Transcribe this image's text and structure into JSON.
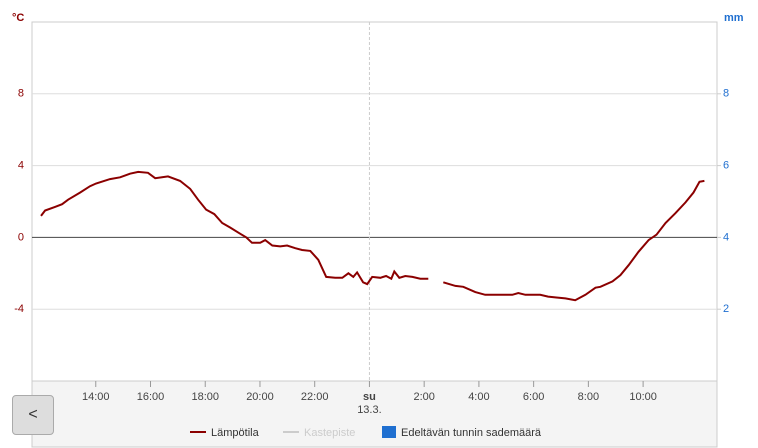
{
  "chart_data": {
    "type": "line",
    "y_label": "°C",
    "y2_label": "mm",
    "date_label": "13.3.",
    "x": [
      12.0,
      12.15,
      12.51,
      12.77,
      12.99,
      13.43,
      13.79,
      14.01,
      14.52,
      14.89,
      15.25,
      15.55,
      15.91,
      16.17,
      16.42,
      16.64,
      17.08,
      17.45,
      17.74,
      18.03,
      18.33,
      18.62,
      18.91,
      19.28,
      19.5,
      19.71,
      20.01,
      20.19,
      20.45,
      20.74,
      20.99,
      21.29,
      21.54,
      21.84,
      22.13,
      22.42,
      22.75,
      23.01,
      23.23,
      23.41,
      23.55,
      23.77,
      23.92,
      24.1,
      24.4,
      24.61,
      24.8,
      24.91,
      25.09,
      25.31,
      25.57,
      25.86,
      26.15,
      26.5,
      26.7,
      27.14,
      27.43,
      27.87,
      28.23,
      28.78,
      29.22,
      29.44,
      29.7,
      30.24,
      30.53,
      30.83,
      31.16,
      31.52,
      31.89,
      32.26,
      32.44,
      32.88,
      33.17,
      33.47,
      33.83,
      34.2,
      34.49,
      34.82,
      35.18,
      35.55,
      35.84,
      36.06,
      36.24
    ],
    "series": [
      {
        "name": "Lämpötila",
        "color": "#8b0000",
        "values": [
          1.2,
          1.5,
          1.7,
          1.85,
          2.1,
          2.5,
          2.85,
          3.0,
          3.25,
          3.35,
          3.55,
          3.65,
          3.6,
          3.3,
          3.35,
          3.4,
          3.15,
          2.7,
          2.1,
          1.55,
          1.3,
          0.8,
          0.55,
          0.2,
          0,
          -0.3,
          -0.3,
          -0.15,
          -0.45,
          -0.5,
          -0.45,
          -0.6,
          -0.7,
          -0.75,
          -1.25,
          -2.2,
          -2.25,
          -2.25,
          -2.0,
          -2.2,
          -1.95,
          -2.5,
          -2.6,
          -2.2,
          -2.25,
          -2.15,
          -2.3,
          -1.9,
          -2.25,
          -2.15,
          -2.2,
          -2.3,
          -2.3,
          null,
          -2.5,
          -2.7,
          -2.75,
          -3.05,
          -3.2,
          -3.2,
          -3.2,
          -3.1,
          -3.2,
          -3.2,
          -3.3,
          -3.35,
          -3.4,
          -3.5,
          -3.2,
          -2.8,
          -2.75,
          -2.45,
          -2.1,
          -1.55,
          -0.8,
          -0.15,
          0.15,
          0.8,
          1.35,
          1.95,
          2.5,
          3.1,
          3.15
        ]
      }
    ],
    "legend_items": [
      {
        "name": "Lämpötila",
        "color": "#8b0000",
        "kind": "line",
        "enabled": true
      },
      {
        "name": "Kastepiste",
        "color": "#cccccc",
        "kind": "line",
        "enabled": false
      },
      {
        "name": "Edeltävän tunnin sademäärä",
        "color": "#1f6fd0",
        "kind": "box",
        "enabled": true
      }
    ],
    "xlim": [
      11.67,
      36.7
    ],
    "xticks": [
      {
        "value": 14,
        "label": "14:00"
      },
      {
        "value": 16,
        "label": "16:00"
      },
      {
        "value": 18,
        "label": "18:00"
      },
      {
        "value": 20,
        "label": "20:00"
      },
      {
        "value": 22,
        "label": "22:00"
      },
      {
        "value": 24,
        "label": "su"
      },
      {
        "value": 26,
        "label": "2:00"
      },
      {
        "value": 28,
        "label": "4:00"
      },
      {
        "value": 30,
        "label": "6:00"
      },
      {
        "value": 32,
        "label": "8:00"
      },
      {
        "value": 34,
        "label": "10:00"
      }
    ],
    "ylim": [
      -8,
      12
    ],
    "yticks": [
      -4,
      0,
      4,
      8
    ],
    "y2lim": [
      0,
      10
    ],
    "y2ticks": [
      2,
      4,
      6,
      8
    ],
    "grid": true
  },
  "nav": {
    "back": "<"
  }
}
